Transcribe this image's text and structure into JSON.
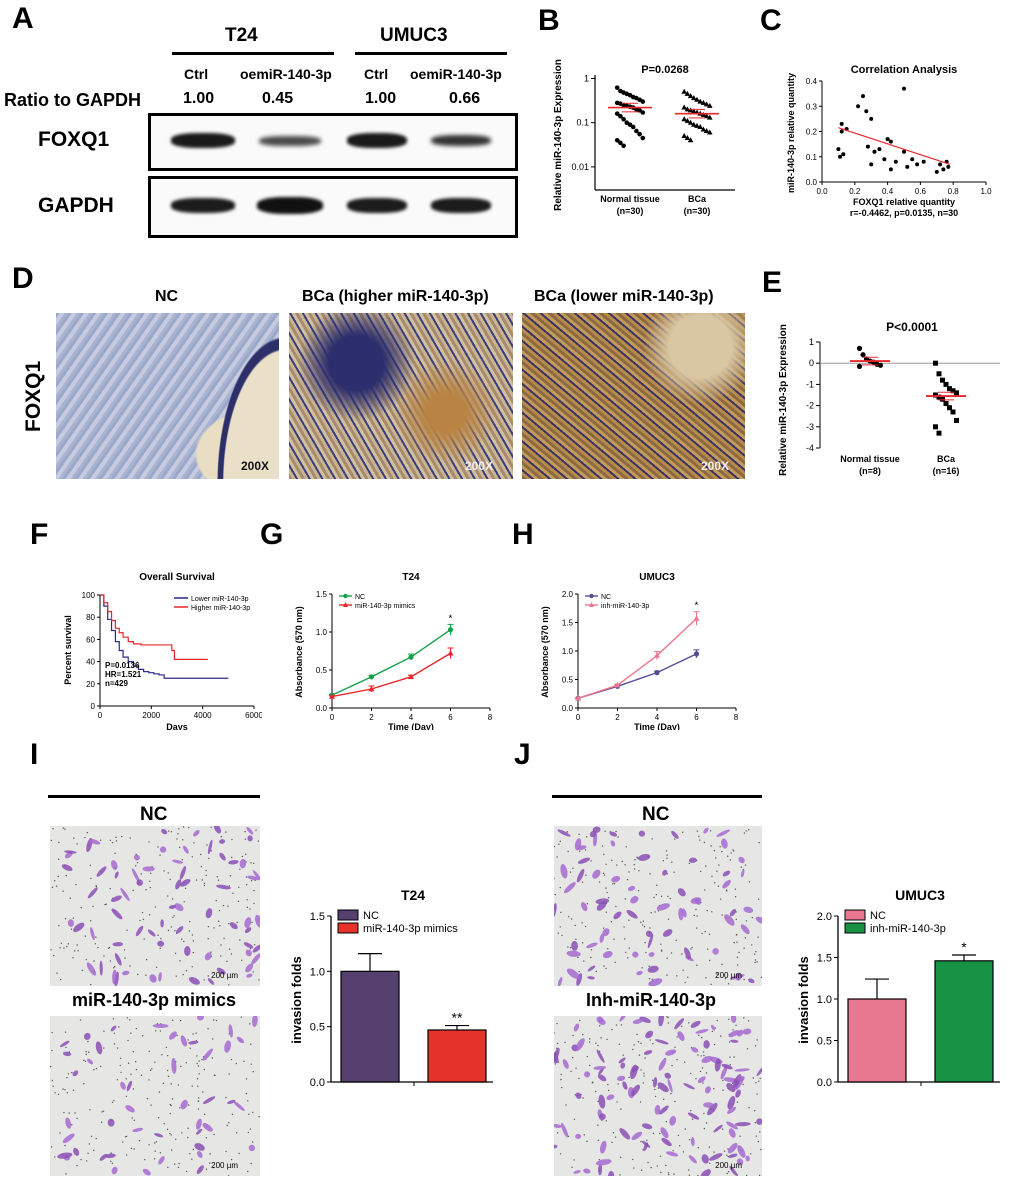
{
  "panel_letters": {
    "A": "A",
    "B": "B",
    "C": "C",
    "D": "D",
    "E": "E",
    "F": "F",
    "G": "G",
    "H": "H",
    "I": "I",
    "J": "J"
  },
  "panelA": {
    "cell_lines": [
      "T24",
      "UMUC3"
    ],
    "lanes": [
      "Ctrl",
      "oemiR-140-3p",
      "Ctrl",
      "oemiR-140-3p"
    ],
    "ratio_label": "Ratio to GAPDH",
    "ratios": [
      "1.00",
      "0.45",
      "1.00",
      "0.66"
    ],
    "proteins": [
      "FOXQ1",
      "GAPDH"
    ]
  },
  "panelD": {
    "row_label": "FOXQ1",
    "titles": [
      "NC",
      "BCa (higher miR-140-3p)",
      "BCa (lower miR-140-3p)"
    ],
    "magnification": "200X"
  },
  "panelI": {
    "top_label": "NC",
    "bottom_label": "miR-140-3p mimics",
    "scale": "200 µm"
  },
  "panelJ": {
    "top_label": "NC",
    "bottom_label": "Inh-miR-140-3p",
    "scale": "200 µm"
  },
  "chart_data": [
    {
      "panel": "B",
      "type": "scatter",
      "title": "P=0.0268",
      "ylabel": "Relative miR-140-3p Expression",
      "ylog": true,
      "ylim": [
        0.003,
        1.2
      ],
      "yticks": [
        "1",
        "0.1",
        "0.01"
      ],
      "categories": [
        "Normal tissue\n(n=30)",
        "BCa\n(n=30)"
      ],
      "groups": [
        {
          "name": "Normal tissue",
          "n": "(n=30)",
          "mean": 0.22,
          "values": [
            0.62,
            0.52,
            0.48,
            0.45,
            0.42,
            0.38,
            0.36,
            0.33,
            0.3,
            0.28,
            0.27,
            0.25,
            0.24,
            0.23,
            0.22,
            0.2,
            0.19,
            0.17,
            0.16,
            0.14,
            0.12,
            0.1,
            0.09,
            0.08,
            0.065,
            0.055,
            0.045,
            0.04,
            0.035,
            0.03
          ]
        },
        {
          "name": "BCa",
          "n": "(n=30)",
          "mean": 0.16,
          "values": [
            0.5,
            0.45,
            0.4,
            0.36,
            0.33,
            0.3,
            0.28,
            0.26,
            0.24,
            0.22,
            0.2,
            0.19,
            0.18,
            0.17,
            0.16,
            0.15,
            0.14,
            0.13,
            0.12,
            0.11,
            0.1,
            0.09,
            0.085,
            0.08,
            0.07,
            0.065,
            0.06,
            0.05,
            0.045,
            0.04
          ]
        }
      ]
    },
    {
      "panel": "C",
      "type": "scatter",
      "title": "Correlation Analysis",
      "xlabel": "FOXQ1 relative quantity",
      "ylabel": "miR-140-3p relative quantity",
      "note": "r=-0.4462, p=0.0135, n=30",
      "xlim": [
        0,
        1.0
      ],
      "ylim": [
        0,
        0.4
      ],
      "xticks": [
        "0.0",
        "0.2",
        "0.4",
        "0.6",
        "0.8",
        "1.0"
      ],
      "yticks": [
        "0.0",
        "0.1",
        "0.2",
        "0.3",
        "0.4"
      ],
      "points": [
        [
          0.12,
          0.2
        ],
        [
          0.1,
          0.13
        ],
        [
          0.11,
          0.1
        ],
        [
          0.13,
          0.11
        ],
        [
          0.12,
          0.23
        ],
        [
          0.15,
          0.21
        ],
        [
          0.22,
          0.3
        ],
        [
          0.25,
          0.34
        ],
        [
          0.27,
          0.28
        ],
        [
          0.28,
          0.14
        ],
        [
          0.3,
          0.25
        ],
        [
          0.32,
          0.12
        ],
        [
          0.35,
          0.13
        ],
        [
          0.38,
          0.09
        ],
        [
          0.4,
          0.17
        ],
        [
          0.42,
          0.16
        ],
        [
          0.45,
          0.08
        ],
        [
          0.5,
          0.37
        ],
        [
          0.5,
          0.12
        ],
        [
          0.52,
          0.06
        ],
        [
          0.55,
          0.09
        ],
        [
          0.58,
          0.07
        ],
        [
          0.62,
          0.08
        ],
        [
          0.7,
          0.04
        ],
        [
          0.72,
          0.07
        ],
        [
          0.74,
          0.05
        ],
        [
          0.77,
          0.06
        ],
        [
          0.76,
          0.08
        ],
        [
          0.3,
          0.07
        ],
        [
          0.42,
          0.05
        ]
      ],
      "fit": [
        [
          0.1,
          0.215
        ],
        [
          0.78,
          0.07
        ]
      ]
    },
    {
      "panel": "E",
      "type": "scatter",
      "title": "P<0.0001",
      "ylabel": "Relative miR-140-3p Expression",
      "ylim": [
        -4,
        1
      ],
      "yticks": [
        "1",
        "0",
        "-1",
        "-2",
        "-3",
        "-4"
      ],
      "groups": [
        {
          "name": "Normal tissue",
          "n": "(n=8)",
          "mean": 0.1,
          "values": [
            0.7,
            0.4,
            0.2,
            0.1,
            0.05,
            -0.05,
            -0.1,
            -0.15
          ]
        },
        {
          "name": "BCa",
          "n": "(n=16)",
          "mean": -1.55,
          "values": [
            0.0,
            -0.5,
            -0.8,
            -1.0,
            -1.2,
            -1.3,
            -1.4,
            -1.5,
            -1.6,
            -1.7,
            -1.9,
            -2.1,
            -2.3,
            -2.7,
            -3.0,
            -3.3
          ]
        }
      ]
    },
    {
      "panel": "F",
      "type": "line",
      "title": "Overall Survival",
      "xlabel": "Days",
      "ylabel": "Percent survival",
      "xlim": [
        0,
        6000
      ],
      "ylim": [
        0,
        100
      ],
      "xticks": [
        "0",
        "2000",
        "4000",
        "6000"
      ],
      "yticks": [
        "0",
        "20",
        "40",
        "60",
        "80",
        "100"
      ],
      "annotation": [
        "P=0.0136",
        "HR=1.521",
        "n=429"
      ],
      "series": [
        {
          "name": "Lower miR-140-3p",
          "color": "#2b2a8a",
          "x": [
            0,
            150,
            300,
            450,
            600,
            750,
            900,
            1100,
            1300,
            1500,
            1700,
            1900,
            2100,
            2300,
            2500,
            2800,
            3100,
            5000
          ],
          "y": [
            100,
            90,
            78,
            68,
            58,
            50,
            44,
            40,
            36,
            33,
            31,
            30,
            29,
            28,
            25,
            25,
            25,
            25
          ]
        },
        {
          "name": "Higher miR-140-3p",
          "color": "#e8262a",
          "x": [
            0,
            150,
            300,
            450,
            600,
            750,
            900,
            1100,
            1300,
            1600,
            2000,
            2400,
            2800,
            2900,
            4200
          ],
          "y": [
            100,
            93,
            85,
            77,
            70,
            66,
            62,
            58,
            56,
            55,
            55,
            55,
            50,
            42,
            42
          ]
        }
      ]
    },
    {
      "panel": "G",
      "type": "line",
      "title": "T24",
      "xlabel": "Time (Day)",
      "ylabel": "Absorbance (570 nm)",
      "xlim": [
        0,
        8
      ],
      "ylim": [
        0,
        1.5
      ],
      "xticks": [
        "0",
        "2",
        "4",
        "6",
        "8"
      ],
      "yticks": [
        "0.0",
        "0.5",
        "1.0",
        "1.5"
      ],
      "asterisk_day": 6,
      "series": [
        {
          "name": "NC",
          "color": "#17a04a",
          "marker": "circle",
          "x": [
            0,
            2,
            4,
            6
          ],
          "y": [
            0.17,
            0.41,
            0.67,
            1.03
          ],
          "err": [
            0.01,
            0.02,
            0.04,
            0.07
          ]
        },
        {
          "name": "miR-140-3p mimics",
          "color": "#e8262a",
          "marker": "triangle",
          "x": [
            0,
            2,
            4,
            6
          ],
          "y": [
            0.15,
            0.25,
            0.41,
            0.72
          ],
          "err": [
            0.01,
            0.04,
            0.02,
            0.07
          ]
        }
      ]
    },
    {
      "panel": "H",
      "type": "line",
      "title": "UMUC3",
      "xlabel": "Time (Day)",
      "ylabel": "Absorbance (570 nm)",
      "xlim": [
        0,
        8
      ],
      "ylim": [
        0,
        2.0
      ],
      "xticks": [
        "0",
        "2",
        "4",
        "6",
        "8"
      ],
      "yticks": [
        "0.0",
        "0.5",
        "1.0",
        "1.5",
        "2.0"
      ],
      "asterisk_day": 6,
      "series": [
        {
          "name": "NC",
          "color": "#5a4a95",
          "marker": "circle",
          "x": [
            0,
            2,
            4,
            6
          ],
          "y": [
            0.17,
            0.38,
            0.62,
            0.95
          ],
          "err": [
            0.01,
            0.02,
            0.03,
            0.07
          ]
        },
        {
          "name": "inh-miR-140-3p",
          "color": "#e9798e",
          "marker": "triangle",
          "x": [
            0,
            2,
            4,
            6
          ],
          "y": [
            0.17,
            0.4,
            0.92,
            1.57
          ],
          "err": [
            0.01,
            0.02,
            0.07,
            0.12
          ]
        }
      ]
    },
    {
      "panel": "I",
      "type": "bar",
      "title": "T24",
      "ylabel": "invasion folds",
      "ylim": [
        0,
        1.5
      ],
      "yticks": [
        "0.0",
        "0.5",
        "1.0",
        "1.5"
      ],
      "series": [
        {
          "name": "NC",
          "color": "#55406f",
          "value": 1.0,
          "err": 0.16
        },
        {
          "name": "miR-140-3p mimics",
          "color": "#e6332a",
          "value": 0.47,
          "err": 0.04
        }
      ],
      "sig": "**"
    },
    {
      "panel": "J",
      "type": "bar",
      "title": "UMUC3",
      "ylabel": "invasion folds",
      "ylim": [
        0,
        2.0
      ],
      "yticks": [
        "0.0",
        "0.5",
        "1.0",
        "1.5",
        "2.0"
      ],
      "series": [
        {
          "name": "NC",
          "color": "#e8788f",
          "value": 1.0,
          "err": 0.24
        },
        {
          "name": "inh-miR-140-3p",
          "color": "#179244",
          "value": 1.46,
          "err": 0.07
        }
      ],
      "sig": "*"
    }
  ]
}
